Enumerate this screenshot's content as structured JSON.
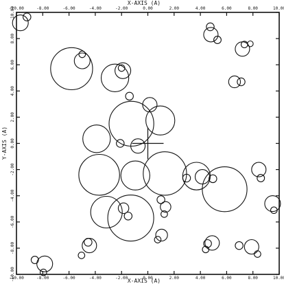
{
  "chart_data": {
    "type": "scatter",
    "title": "",
    "xlabel": "X-AXIS (A)",
    "ylabel": "Y-AXIS (A)",
    "top_xlabel": "X-AXIS (A)",
    "xlim": [
      -10,
      10
    ],
    "ylim": [
      -10,
      10
    ],
    "x_ticks": [
      "-10.00",
      "-8.00",
      "-6.00",
      "-4.00",
      "-2.00",
      "0.00",
      "2.00",
      "4.00",
      "6.00",
      "8.00",
      "10.00"
    ],
    "y_ticks": [
      "-10.00",
      "-8.00",
      "-6.00",
      "-4.00",
      "-2.00",
      "0.00",
      "2.00",
      "4.00",
      "6.00",
      "8.00",
      "10.00"
    ],
    "marker": {
      "x": 0.0,
      "y": 0.0
    },
    "circles": [
      {
        "x": -9.7,
        "y": 9.2,
        "r": 0.6
      },
      {
        "x": -9.2,
        "y": 9.65,
        "r": 0.3
      },
      {
        "x": 4.8,
        "y": 8.3,
        "r": 0.55
      },
      {
        "x": 4.75,
        "y": 8.9,
        "r": 0.3
      },
      {
        "x": 5.3,
        "y": 7.9,
        "r": 0.28
      },
      {
        "x": 7.2,
        "y": 7.2,
        "r": 0.55
      },
      {
        "x": 7.35,
        "y": 7.55,
        "r": 0.25
      },
      {
        "x": 7.8,
        "y": 7.6,
        "r": 0.22
      },
      {
        "x": 6.6,
        "y": 4.7,
        "r": 0.45
      },
      {
        "x": 7.1,
        "y": 4.7,
        "r": 0.3
      },
      {
        "x": -5.8,
        "y": 5.7,
        "r": 1.6
      },
      {
        "x": -5.0,
        "y": 6.3,
        "r": 0.6
      },
      {
        "x": -5.0,
        "y": 6.8,
        "r": 0.25
      },
      {
        "x": -2.5,
        "y": 5.0,
        "r": 1.05
      },
      {
        "x": -1.9,
        "y": 5.55,
        "r": 0.6
      },
      {
        "x": -2.0,
        "y": 5.75,
        "r": 0.25
      },
      {
        "x": -1.25,
        "y": 1.5,
        "r": 1.7
      },
      {
        "x": -1.4,
        "y": 3.6,
        "r": 0.3
      },
      {
        "x": 0.15,
        "y": 2.95,
        "r": 0.55
      },
      {
        "x": 0.95,
        "y": 1.75,
        "r": 1.1
      },
      {
        "x": -0.75,
        "y": -0.2,
        "r": 0.55
      },
      {
        "x": -2.1,
        "y": 0.0,
        "r": 0.3
      },
      {
        "x": -3.9,
        "y": 0.35,
        "r": 1.05
      },
      {
        "x": -3.7,
        "y": -2.4,
        "r": 1.55
      },
      {
        "x": -0.95,
        "y": -2.45,
        "r": 1.1
      },
      {
        "x": 1.3,
        "y": -2.3,
        "r": 1.65
      },
      {
        "x": 3.7,
        "y": -2.5,
        "r": 1.05
      },
      {
        "x": 4.15,
        "y": -2.55,
        "r": 0.55
      },
      {
        "x": 2.95,
        "y": -2.65,
        "r": 0.3
      },
      {
        "x": 4.95,
        "y": -2.7,
        "r": 0.3
      },
      {
        "x": 5.85,
        "y": -3.5,
        "r": 1.7
      },
      {
        "x": -3.15,
        "y": -5.25,
        "r": 1.2
      },
      {
        "x": -1.3,
        "y": -5.7,
        "r": 1.75
      },
      {
        "x": -1.85,
        "y": -4.95,
        "r": 0.4
      },
      {
        "x": -1.5,
        "y": -5.55,
        "r": 0.3
      },
      {
        "x": 1.0,
        "y": -4.3,
        "r": 0.3
      },
      {
        "x": 1.35,
        "y": -4.85,
        "r": 0.4
      },
      {
        "x": 1.25,
        "y": -5.4,
        "r": 0.25
      },
      {
        "x": 8.45,
        "y": -2.0,
        "r": 0.55
      },
      {
        "x": 8.6,
        "y": -2.65,
        "r": 0.28
      },
      {
        "x": 9.5,
        "y": -4.6,
        "r": 0.6
      },
      {
        "x": 9.6,
        "y": -5.1,
        "r": 0.25
      },
      {
        "x": 1.05,
        "y": -7.0,
        "r": 0.45
      },
      {
        "x": 0.75,
        "y": -7.35,
        "r": 0.25
      },
      {
        "x": 4.9,
        "y": -7.6,
        "r": 0.55
      },
      {
        "x": 4.55,
        "y": -7.65,
        "r": 0.3
      },
      {
        "x": 4.4,
        "y": -8.1,
        "r": 0.25
      },
      {
        "x": 7.9,
        "y": -7.9,
        "r": 0.55
      },
      {
        "x": 6.95,
        "y": -7.8,
        "r": 0.3
      },
      {
        "x": 8.35,
        "y": -8.45,
        "r": 0.25
      },
      {
        "x": -4.45,
        "y": -7.8,
        "r": 0.55
      },
      {
        "x": -4.55,
        "y": -7.55,
        "r": 0.3
      },
      {
        "x": -5.05,
        "y": -8.55,
        "r": 0.25
      },
      {
        "x": -7.85,
        "y": -9.2,
        "r": 0.6
      },
      {
        "x": -8.6,
        "y": -8.9,
        "r": 0.28
      },
      {
        "x": -7.95,
        "y": -9.85,
        "r": 0.25
      }
    ]
  }
}
